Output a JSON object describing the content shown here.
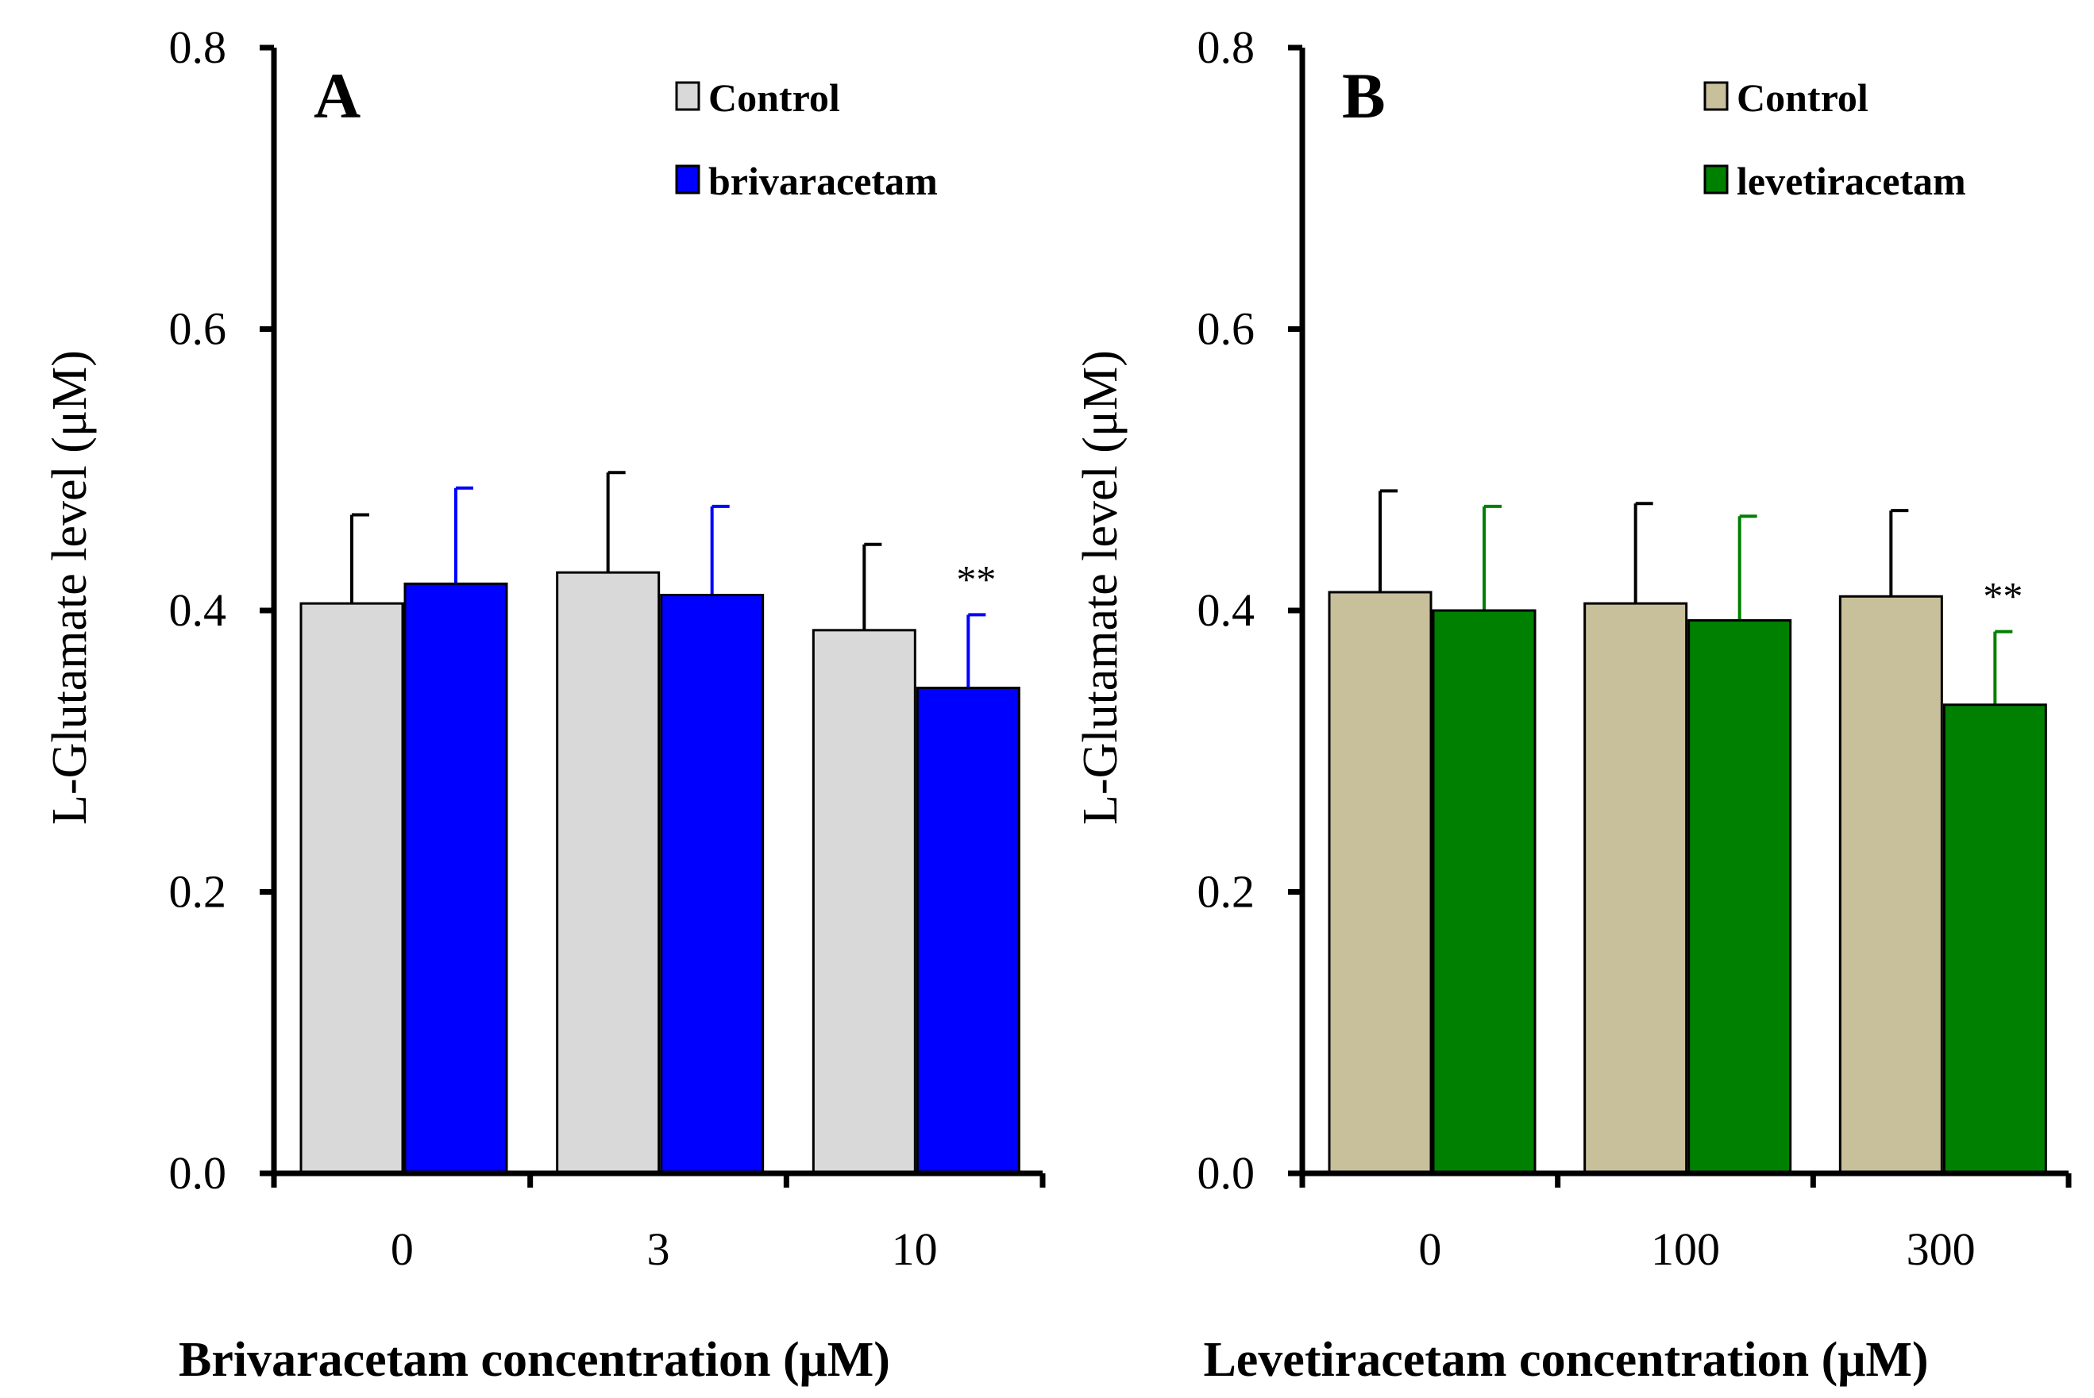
{
  "chart_data": [
    {
      "panel": "A",
      "type": "bar",
      "categories": [
        "0",
        "3",
        "10"
      ],
      "series": [
        {
          "name": "Control",
          "color": "#d9d9d9",
          "error_color": "#000000",
          "values": [
            0.405,
            0.427,
            0.386
          ],
          "errors": [
            0.063,
            0.071,
            0.061
          ]
        },
        {
          "name": "brivaracetam",
          "color": "#0000ff",
          "error_color": "#0000ff",
          "values": [
            0.419,
            0.411,
            0.345
          ],
          "errors": [
            0.068,
            0.063,
            0.052
          ]
        }
      ],
      "annotations": [
        {
          "text": "**",
          "category": "10",
          "series": "brivaracetam"
        }
      ],
      "yticks": [
        "0.0",
        "0.2",
        "0.4",
        "0.6",
        "0.8"
      ],
      "ylim": [
        0,
        0.8
      ],
      "ylabel": "L-Glutamate  level (μM)",
      "xlabel": "Brivaracetam concentration (μM)",
      "legend": [
        "Control",
        "brivaracetam"
      ],
      "legend_position": "top-right",
      "grid": false
    },
    {
      "panel": "B",
      "type": "bar",
      "categories": [
        "0",
        "100",
        "300"
      ],
      "series": [
        {
          "name": "Control",
          "color": "#c8bf9b",
          "error_color": "#000000",
          "values": [
            0.413,
            0.405,
            0.41
          ],
          "errors": [
            0.072,
            0.071,
            0.061
          ]
        },
        {
          "name": "levetiracetam",
          "color": "#008000",
          "error_color": "#008000",
          "values": [
            0.4,
            0.393,
            0.333
          ],
          "errors": [
            0.074,
            0.074,
            0.052
          ]
        }
      ],
      "annotations": [
        {
          "text": "**",
          "category": "300",
          "series": "levetiracetam"
        }
      ],
      "yticks": [
        "0.0",
        "0.2",
        "0.4",
        "0.6",
        "0.8"
      ],
      "ylim": [
        0,
        0.8
      ],
      "ylabel": "L-Glutamate  level (μM)",
      "xlabel": "Levetiracetam concentration (μM)",
      "legend": [
        "Control",
        "levetiracetam"
      ],
      "legend_position": "top-right",
      "grid": false
    }
  ]
}
